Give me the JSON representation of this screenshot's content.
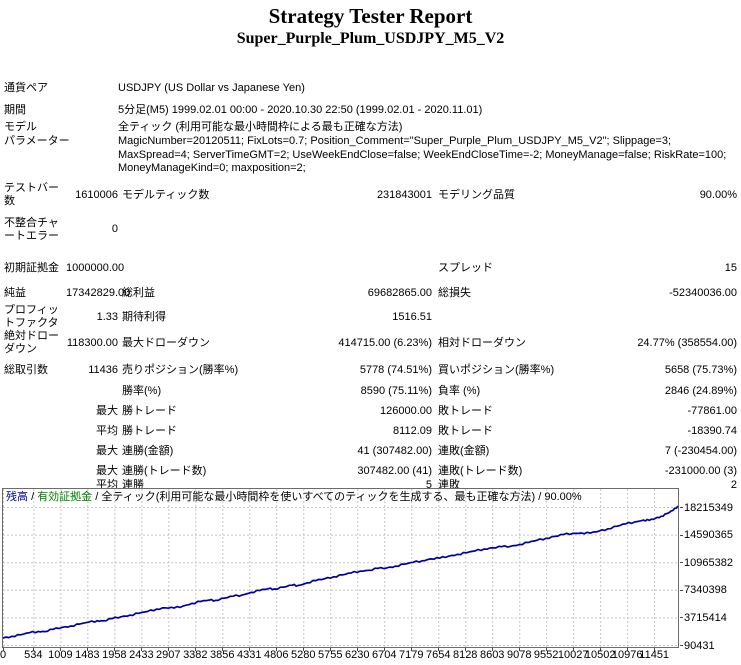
{
  "title": "Strategy Tester Report",
  "subtitle": "Super_Purple_Plum_USDJPY_M5_V2",
  "info": [
    {
      "label": "通貨ペア",
      "value": "USDJPY (US Dollar vs Japanese Yen)"
    },
    {
      "label": "期間",
      "value": "5分足(M5) 1999.02.01 00:00 - 2020.10.30 22:50 (1999.02.01 - 2020.11.01)"
    },
    {
      "label": "モデル",
      "value": "全ティック (利用可能な最小時間枠による最も正確な方法)"
    },
    {
      "label": "パラメーター",
      "value": "MagicNumber=20120511; FixLots=0.7; Position_Comment=\"Super_Purple_Plum_USDJPY_M5_V2\"; Slippage=3; MaxSpread=4; ServerTimeGMT=2; UseWeekEndClose=false; WeekEndCloseTime=-2; MoneyManage=false; RiskRate=100; MoneyManageKind=0; maxposition=2;"
    }
  ],
  "stats_rows": [
    [
      "テストバー数",
      "1610006",
      "モデルティック数",
      "231843001",
      "モデリング品質",
      "90.00%"
    ],
    [
      "不整合チャートエラー",
      "0",
      "",
      "",
      "",
      ""
    ],
    [
      "初期証拠金",
      "1000000.00",
      "",
      "",
      "スプレッド",
      "15"
    ],
    [
      "純益",
      "17342829.00",
      "総利益",
      "69682865.00",
      "総損失",
      "-52340036.00"
    ],
    [
      "プロフィットファクタ",
      "1.33",
      "期待利得",
      "1516.51",
      "",
      ""
    ],
    [
      "絶対ドローダウン",
      "118300.00",
      "最大ドローダウン",
      "414715.00 (6.23%)",
      "相対ドローダウン",
      "24.77% (358554.00)"
    ],
    [
      "総取引数",
      "11436",
      "売りポジション(勝率%)",
      "5778 (74.51%)",
      "買いポジション(勝率%)",
      "5658 (75.73%)"
    ],
    [
      "",
      "",
      "勝率(%)",
      "8590 (75.11%)",
      "負率 (%)",
      "2846 (24.89%)"
    ],
    [
      "",
      "最大",
      "勝トレード",
      "126000.00",
      "敗トレード",
      "-77861.00"
    ],
    [
      "",
      "平均",
      "勝トレード",
      "8112.09",
      "敗トレード",
      "-18390.74"
    ],
    [
      "",
      "最大",
      "連勝(金額)",
      "41 (307482.00)",
      "連敗(金額)",
      "7 (-230454.00)"
    ],
    [
      "",
      "最大",
      "連勝(トレード数)",
      "307482.00 (41)",
      "連敗(トレード数)",
      "-231000.00 (3)"
    ],
    [
      "",
      "平均",
      "連勝",
      "5",
      "連敗",
      "2"
    ]
  ],
  "chart_data": {
    "type": "line",
    "title": "残高 / 有効証拠金 / 全ティック(利用可能な最小時間枠を使いすべてのティックを生成する、最も正確な方法) / 90.00%",
    "legend": {
      "balance_label": "残高",
      "equity_label": "有効証拠金",
      "model_label": "全ティック(利用可能な最小時間枠を使いすべてのティックを生成する、最も正確な方法)",
      "quality": "90.00%",
      "separator": "/",
      "balance_color": "#0000A0",
      "equity_color": "#008000"
    },
    "grid": true,
    "legend_position": "top-left",
    "xlabel": "",
    "ylabel": "",
    "x_ticks": [
      0,
      534,
      1009,
      1483,
      1958,
      2433,
      2907,
      3382,
      3856,
      4331,
      4806,
      5280,
      5755,
      6230,
      6704,
      7179,
      7654,
      8128,
      8603,
      9078,
      9552,
      10027,
      10502,
      10976,
      11451
    ],
    "y_ticks": [
      90431,
      3715414,
      7340398,
      10965382,
      14590365,
      18215349
    ],
    "xlim": [
      0,
      11870
    ],
    "ylim": [
      90431,
      18215349
    ],
    "series": [
      {
        "name": "残高",
        "color": "#0000A0",
        "points": [
          [
            0,
            1000000
          ],
          [
            150,
            1230000
          ],
          [
            300,
            1430000
          ],
          [
            450,
            1700000
          ],
          [
            600,
            1880000
          ],
          [
            700,
            1850000
          ],
          [
            850,
            2150000
          ],
          [
            1000,
            2400000
          ],
          [
            1150,
            2580000
          ],
          [
            1300,
            2830000
          ],
          [
            1450,
            3080000
          ],
          [
            1600,
            3280000
          ],
          [
            1700,
            3250000
          ],
          [
            1850,
            3560000
          ],
          [
            2000,
            3800000
          ],
          [
            2150,
            4000000
          ],
          [
            2300,
            4250000
          ],
          [
            2450,
            4500000
          ],
          [
            2600,
            4800000
          ],
          [
            2750,
            4980000
          ],
          [
            2900,
            4950000
          ],
          [
            3050,
            5200000
          ],
          [
            3200,
            5550000
          ],
          [
            3350,
            5800000
          ],
          [
            3500,
            6000000
          ],
          [
            3600,
            5950000
          ],
          [
            3750,
            6250000
          ],
          [
            3900,
            6500000
          ],
          [
            4050,
            6650000
          ],
          [
            4200,
            7000000
          ],
          [
            4350,
            7250000
          ],
          [
            4500,
            7500000
          ],
          [
            4600,
            7450000
          ],
          [
            4750,
            7700000
          ],
          [
            4900,
            7950000
          ],
          [
            5000,
            7900000
          ],
          [
            5150,
            8250000
          ],
          [
            5300,
            8550000
          ],
          [
            5450,
            8800000
          ],
          [
            5600,
            9050000
          ],
          [
            5750,
            9300000
          ],
          [
            5900,
            9550000
          ],
          [
            6050,
            9800000
          ],
          [
            6200,
            9900000
          ],
          [
            6350,
            10150000
          ],
          [
            6500,
            10200000
          ],
          [
            6650,
            10450000
          ],
          [
            6800,
            10700000
          ],
          [
            6950,
            10950000
          ],
          [
            7100,
            11150000
          ],
          [
            7250,
            11400000
          ],
          [
            7400,
            11500000
          ],
          [
            7550,
            11750000
          ],
          [
            7700,
            12000000
          ],
          [
            7850,
            12200000
          ],
          [
            8000,
            12450000
          ],
          [
            8150,
            12700000
          ],
          [
            8300,
            12850000
          ],
          [
            8450,
            13000000
          ],
          [
            8600,
            13050000
          ],
          [
            8750,
            13300000
          ],
          [
            8900,
            13550000
          ],
          [
            9050,
            13850000
          ],
          [
            9200,
            14100000
          ],
          [
            9350,
            14350000
          ],
          [
            9500,
            14600000
          ],
          [
            9650,
            14750000
          ],
          [
            9800,
            14800000
          ],
          [
            9950,
            14780000
          ],
          [
            10100,
            15050000
          ],
          [
            10250,
            15350000
          ],
          [
            10400,
            15700000
          ],
          [
            10550,
            16000000
          ],
          [
            10700,
            16250000
          ],
          [
            10850,
            16500000
          ],
          [
            10950,
            16450000
          ],
          [
            11050,
            16700000
          ],
          [
            11150,
            17000000
          ],
          [
            11250,
            17350000
          ],
          [
            11350,
            17750000
          ],
          [
            11436,
            18342829
          ]
        ]
      }
    ]
  }
}
